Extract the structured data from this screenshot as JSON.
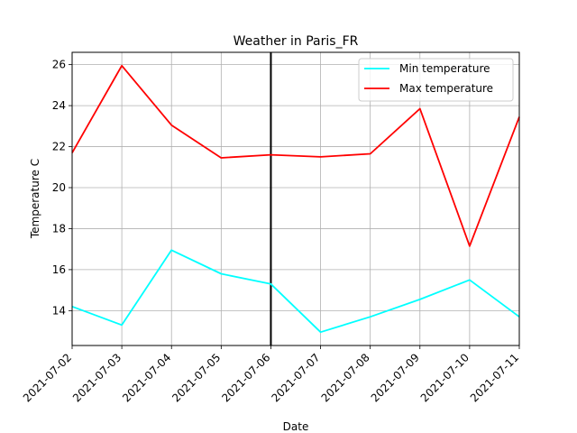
{
  "chart_data": {
    "type": "line",
    "title": "Weather in Paris_FR",
    "xlabel": "Date",
    "ylabel": "Temperature C",
    "x": [
      "2021-07-02",
      "2021-07-03",
      "2021-07-04",
      "2021-07-05",
      "2021-07-06",
      "2021-07-07",
      "2021-07-08",
      "2021-07-09",
      "2021-07-10",
      "2021-07-11"
    ],
    "ylim": [
      12.3,
      26.6
    ],
    "yticks": [
      14,
      16,
      18,
      20,
      22,
      24,
      26
    ],
    "grid": true,
    "legend_position": "top-right",
    "vline_x": "2021-07-06",
    "vline_color": "#000000",
    "series": [
      {
        "name": "Min temperature",
        "color": "#00ffff",
        "values": [
          14.2,
          13.3,
          16.95,
          15.8,
          15.3,
          12.95,
          13.7,
          14.55,
          15.5,
          13.7
        ]
      },
      {
        "name": "Max temperature",
        "color": "#ff0000",
        "values": [
          21.7,
          25.95,
          23.05,
          21.45,
          21.6,
          21.5,
          21.65,
          23.85,
          17.15,
          23.45
        ]
      }
    ]
  }
}
